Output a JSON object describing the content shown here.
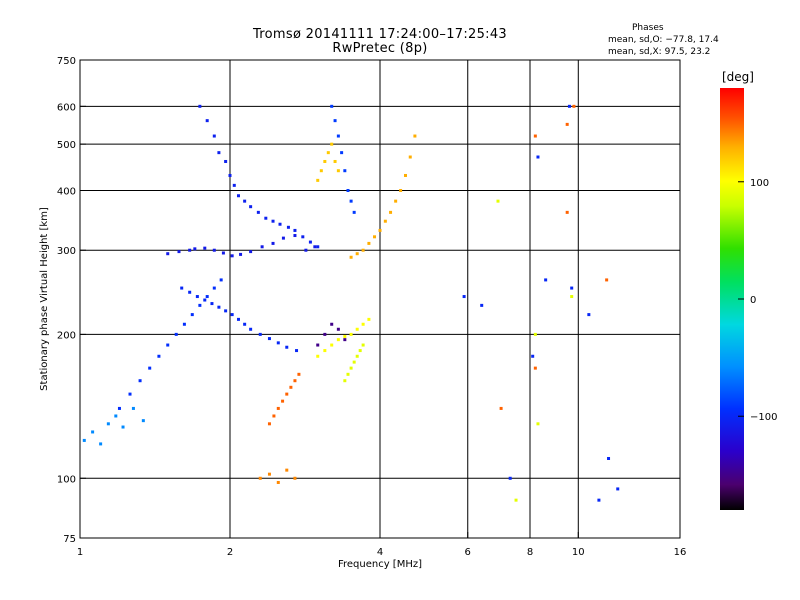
{
  "header": {
    "title": "Tromsø 20141111 17:24:00–17:25:43",
    "subtitle": "RwPretec (8p)"
  },
  "phases_box": {
    "title": "Phases",
    "line_o_label": "mean, sd,O:",
    "line_o_values": "−77.8, 17.4",
    "line_x_label": "mean, sd,X:",
    "line_x_values": "97.5, 23.2"
  },
  "chart_data": {
    "type": "scatter",
    "xlabel": "Frequency [MHz]",
    "ylabel": "Stationary phase Virtual Height [km]",
    "xscale": "log",
    "yscale": "log",
    "xlim": [
      1,
      16
    ],
    "ylim": [
      75,
      750
    ],
    "xticks": [
      1,
      2,
      4,
      6,
      8,
      10,
      16
    ],
    "yticks": [
      75,
      100,
      200,
      300,
      400,
      500,
      600,
      750
    ],
    "grid_x": [
      2,
      4,
      6,
      8,
      10
    ],
    "grid_y": [
      100,
      200,
      300,
      400,
      500,
      600
    ],
    "colorbar": {
      "label": "[deg]",
      "min": -180,
      "max": 180,
      "ticks": [
        100,
        0,
        -100
      ]
    },
    "series": [
      {
        "phase_deg": -110,
        "x": [
          1.5,
          1.58,
          1.66,
          1.7,
          1.78,
          1.86,
          1.94,
          2.02,
          2.1,
          2.2,
          2.32,
          2.44,
          2.56,
          2.7,
          2.84,
          2.96
        ],
        "y": [
          295,
          298,
          300,
          302,
          303,
          300,
          296,
          292,
          294,
          298,
          305,
          310,
          318,
          322,
          300,
          305
        ]
      },
      {
        "phase_deg": -105,
        "x": [
          1.74,
          1.8,
          1.86,
          1.9,
          1.96,
          2.0,
          2.04,
          2.08,
          2.14,
          2.2,
          2.28,
          2.36,
          2.44,
          2.52,
          2.62,
          2.7,
          2.8,
          2.9,
          3.0
        ],
        "y": [
          600,
          560,
          520,
          480,
          460,
          430,
          410,
          390,
          380,
          370,
          360,
          350,
          345,
          340,
          335,
          330,
          320,
          312,
          305
        ]
      },
      {
        "phase_deg": -100,
        "x": [
          1.6,
          1.66,
          1.72,
          1.78,
          1.84,
          1.9,
          1.96,
          2.02,
          2.08,
          2.14,
          2.2,
          2.3,
          2.4,
          2.5,
          2.6,
          2.72
        ],
        "y": [
          250,
          245,
          240,
          236,
          232,
          228,
          224,
          220,
          215,
          210,
          205,
          200,
          196,
          192,
          188,
          185
        ]
      },
      {
        "phase_deg": -95,
        "x": [
          1.2,
          1.26,
          1.32,
          1.38,
          1.44,
          1.5,
          1.56,
          1.62,
          1.68,
          1.74,
          1.8,
          1.86,
          1.92
        ],
        "y": [
          140,
          150,
          160,
          170,
          180,
          190,
          200,
          210,
          220,
          230,
          240,
          250,
          260
        ]
      },
      {
        "phase_deg": -60,
        "x": [
          1.02,
          1.06,
          1.1,
          1.14,
          1.18,
          1.22,
          1.28,
          1.34
        ],
        "y": [
          120,
          125,
          118,
          130,
          135,
          128,
          140,
          132
        ]
      },
      {
        "phase_deg": -90,
        "x": [
          3.2,
          3.25,
          3.3,
          3.35,
          3.4,
          3.45,
          3.5,
          3.55
        ],
        "y": [
          600,
          560,
          520,
          480,
          440,
          400,
          380,
          360
        ]
      },
      {
        "phase_deg": 130,
        "x": [
          3.5,
          3.6,
          3.7,
          3.8,
          3.9,
          4.0,
          4.1,
          4.2,
          4.3,
          4.4,
          4.5,
          4.6,
          4.7
        ],
        "y": [
          290,
          295,
          300,
          310,
          320,
          330,
          345,
          360,
          380,
          400,
          430,
          470,
          520
        ]
      },
      {
        "phase_deg": 100,
        "x": [
          3.0,
          3.1,
          3.2,
          3.3,
          3.4,
          3.5,
          3.6,
          3.7,
          3.8
        ],
        "y": [
          180,
          185,
          190,
          195,
          198,
          200,
          205,
          210,
          215
        ]
      },
      {
        "phase_deg": 150,
        "x": [
          2.4,
          2.45,
          2.5,
          2.55,
          2.6,
          2.65,
          2.7,
          2.75
        ],
        "y": [
          130,
          135,
          140,
          145,
          150,
          155,
          160,
          165
        ]
      },
      {
        "phase_deg": 140,
        "x": [
          2.3,
          2.4,
          2.5,
          2.6,
          2.7
        ],
        "y": [
          100,
          102,
          98,
          104,
          100
        ]
      },
      {
        "phase_deg": 120,
        "x": [
          3.0,
          3.05,
          3.1,
          3.15,
          3.2,
          3.25,
          3.3
        ],
        "y": [
          420,
          440,
          460,
          480,
          500,
          460,
          440
        ]
      },
      {
        "phase_deg": 90,
        "x": [
          3.4,
          3.45,
          3.5,
          3.55,
          3.6,
          3.65,
          3.7
        ],
        "y": [
          160,
          165,
          170,
          175,
          180,
          185,
          190
        ]
      },
      {
        "phase_deg": -150,
        "x": [
          3.0,
          3.1,
          3.2,
          3.3,
          3.4
        ],
        "y": [
          190,
          200,
          210,
          205,
          195
        ]
      },
      {
        "phase_deg": -100,
        "x": [
          6.4,
          7.3,
          8.1,
          8.3,
          9.6,
          11.0,
          12.0,
          11.5,
          5.9,
          8.6,
          9.7,
          10.5
        ],
        "y": [
          230,
          100,
          180,
          470,
          600,
          90,
          95,
          110,
          240,
          260,
          250,
          220
        ]
      },
      {
        "phase_deg": 150,
        "x": [
          7.0,
          8.2,
          9.5,
          9.8,
          11.4,
          8.2,
          9.5
        ],
        "y": [
          140,
          170,
          550,
          600,
          260,
          520,
          360
        ]
      },
      {
        "phase_deg": 90,
        "x": [
          6.9,
          7.5,
          8.2,
          8.3,
          9.7
        ],
        "y": [
          380,
          90,
          200,
          130,
          240
        ]
      }
    ]
  }
}
